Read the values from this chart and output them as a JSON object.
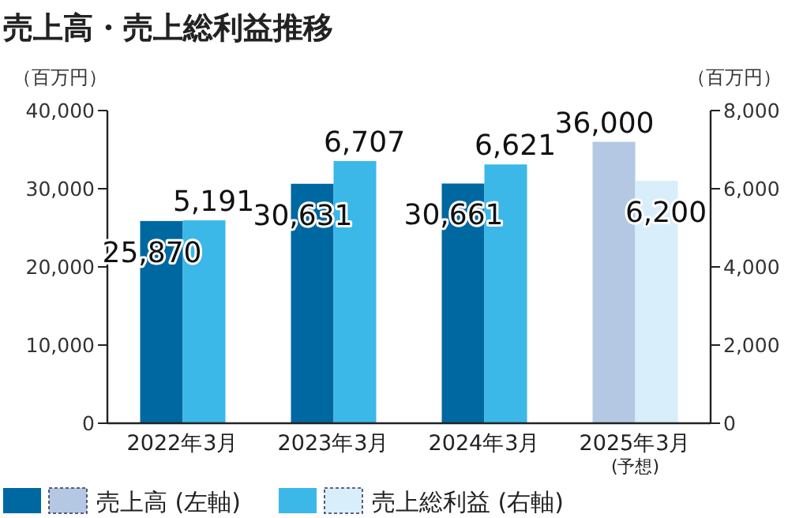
{
  "chart_data": {
    "type": "bar",
    "title": "売上高・売上総利益推移",
    "ylabel": "（百万円）",
    "y2label": "（百万円）",
    "categories": [
      "2022年3月",
      "2023年3月",
      "2024年3月",
      "2025年3月"
    ],
    "series": [
      {
        "name": "売上高 (左軸)",
        "colors": [
          "#0068a0",
          "#0068a0",
          "#0068a0",
          "#b4c8e4"
        ],
        "values": [
          25870,
          30631,
          30661,
          36000
        ],
        "value_labels": [
          "25,870",
          "30,631",
          "30,661",
          "36,000"
        ]
      },
      {
        "name": "売上総利益 (右軸)",
        "axis": "y2",
        "colors": [
          "#3bb8e8",
          "#3bb8e8",
          "#3bb8e8",
          "#d8eefa"
        ],
        "values": [
          5191,
          6707,
          6621,
          6200
        ],
        "value_labels": [
          "5,191",
          "6,707",
          "6,621",
          "6,200"
        ]
      }
    ],
    "ylim": [
      0,
      40000
    ],
    "yticks": [
      0,
      {
        "value": 10000,
        "label": "10,000"
      },
      {
        "value": 20000,
        "label": "20,000"
      },
      {
        "value": 30000,
        "label": "30,000"
      },
      {
        "value": 40000,
        "label": "40,000"
      }
    ],
    "y2lim": [
      0,
      8000
    ],
    "y2ticks": [
      0,
      {
        "value": 2000,
        "label": "2,000"
      },
      {
        "value": 4000,
        "label": "4,000"
      },
      {
        "value": 6000,
        "label": "6,000"
      },
      {
        "value": 8000,
        "label": "8,000"
      }
    ],
    "legend": "bottom",
    "grid": false,
    "annotations": [
      "(予想)"
    ]
  }
}
